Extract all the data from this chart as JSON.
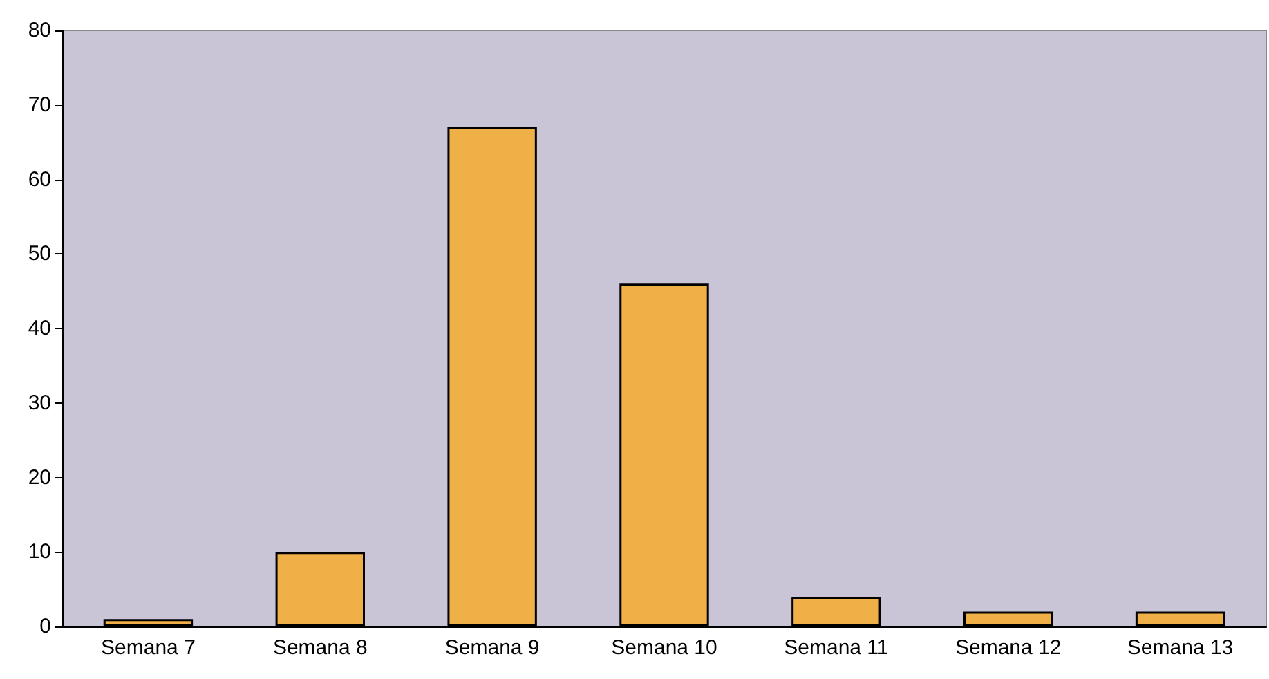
{
  "chart_data": {
    "type": "bar",
    "categories": [
      "Semana 7",
      "Semana 8",
      "Semana 9",
      "Semana 10",
      "Semana 11",
      "Semana 12",
      "Semana 13"
    ],
    "values": [
      1,
      10,
      67,
      46,
      4,
      2,
      2
    ],
    "color": "#f0b048",
    "ylim": [
      0,
      80
    ],
    "yticks": [
      0,
      10,
      20,
      30,
      40,
      50,
      60,
      70,
      80
    ],
    "grid": false
  }
}
